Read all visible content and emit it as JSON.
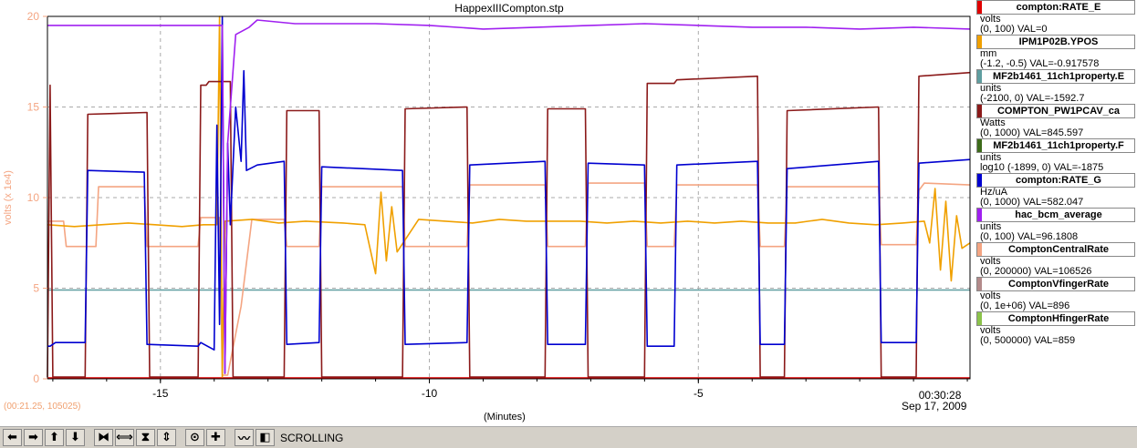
{
  "chart_data": {
    "type": "line",
    "title": "HappexIIICompton.stp",
    "xlabel": "(Minutes)",
    "ylabel": "volts (x 1e4)",
    "xlim": [
      -17.1,
      0.05
    ],
    "ylim": [
      0,
      20
    ],
    "x_ticks": [
      "-15",
      "-10",
      "-5"
    ],
    "x_tick_values": [
      -15,
      -10,
      -5
    ],
    "y_ticks": [
      "0",
      "5",
      "10",
      "15",
      "20"
    ],
    "y_tick_values": [
      0,
      5,
      10,
      15,
      20
    ],
    "grid": true,
    "legend_position": "right",
    "series": [
      {
        "name": "compton:RATE_E",
        "color": "#e00000",
        "unit": "volts",
        "range": "(0, 100)  VAL=0",
        "x": [
          -17.1,
          0.05
        ],
        "y": [
          0.05,
          0.05
        ]
      },
      {
        "name": "IPM1P02B.YPOS",
        "color": "#f0a000",
        "unit": "mm",
        "range": "(-1.2, -0.5) VAL=-0.917578",
        "x": [
          -17.1,
          -16.6,
          -16.1,
          -15.6,
          -15.1,
          -14.6,
          -14.2,
          -13.95,
          -13.9,
          -13.85,
          -13.8,
          -13.3,
          -12.8,
          -12.3,
          -11.6,
          -11.2,
          -11.0,
          -10.9,
          -10.8,
          -10.7,
          -10.6,
          -10.2,
          -9.7,
          -9.2,
          -8.7,
          -8.2,
          -7.7,
          -7.2,
          -6.7,
          -6.2,
          -5.7,
          -5.2,
          -4.7,
          -4.2,
          -3.7,
          -3.2,
          -2.7,
          -2.2,
          -1.7,
          -1.2,
          -0.8,
          -0.7,
          -0.6,
          -0.5,
          -0.4,
          -0.3,
          -0.2,
          -0.1,
          0.05
        ],
        "y": [
          8.5,
          8.4,
          8.5,
          8.6,
          8.5,
          8.4,
          8.5,
          8.5,
          20,
          0.1,
          8.7,
          8.8,
          8.6,
          8.7,
          8.6,
          8.5,
          5.8,
          10.3,
          6.5,
          9.5,
          7.0,
          8.8,
          8.7,
          8.6,
          8.8,
          8.7,
          8.7,
          8.7,
          8.6,
          8.7,
          8.6,
          8.7,
          8.6,
          8.7,
          8.6,
          8.6,
          8.8,
          8.6,
          8.5,
          8.6,
          8.7,
          7.5,
          10.5,
          6.0,
          9.8,
          5.4,
          9.0,
          7.2,
          7.5
        ]
      },
      {
        "name": "MF2b1461_11ch1property.E",
        "color": "#5f9ea0",
        "unit": "units",
        "range": "(-2100, 0) VAL=-1592.7",
        "x": [
          -17.1,
          0.05
        ],
        "y": [
          4.9,
          4.9
        ]
      },
      {
        "name": "COMPTON_PW1PCAV_ca",
        "color": "#8b1a1a",
        "unit": "Watts",
        "range": "(0, 1000) VAL=845.597",
        "x": [
          -17.1,
          -17.05,
          -17.0,
          -16.4,
          -16.35,
          -15.25,
          -15.2,
          -14.3,
          -14.25,
          -14.15,
          -14.1,
          -13.7,
          -13.65,
          -12.7,
          -12.65,
          -12.05,
          -12.0,
          -10.5,
          -10.45,
          -9.3,
          -9.25,
          -7.85,
          -7.8,
          -7.1,
          -7.05,
          -6.0,
          -5.95,
          -5.45,
          -5.4,
          -3.9,
          -3.85,
          -3.4,
          -3.35,
          -1.65,
          -1.6,
          -0.95,
          -0.9,
          0.05
        ],
        "y": [
          0.1,
          16.2,
          0.1,
          0.1,
          14.6,
          14.7,
          0.1,
          0.1,
          16.2,
          16.2,
          16.4,
          16.4,
          0.1,
          0.1,
          14.8,
          14.8,
          0.1,
          0.1,
          14.9,
          15.0,
          0.1,
          0.1,
          14.9,
          14.9,
          0.1,
          0.1,
          16.3,
          16.3,
          16.5,
          16.7,
          0.1,
          0.1,
          14.8,
          15.0,
          0.1,
          0.1,
          16.7,
          16.9
        ]
      },
      {
        "name": "MF2b1461_11ch1property.F",
        "color": "#3d6b1a",
        "unit": "units",
        "range": "log10 (-1899, 0)  VAL=-1875",
        "x": [],
        "y": []
      },
      {
        "name": "compton:RATE_G",
        "color": "#0000d0",
        "unit": "Hz/uA",
        "range": "(0, 1000) VAL=582.047",
        "x": [
          -17.1,
          -17.05,
          -16.95,
          -16.4,
          -16.35,
          -15.3,
          -15.25,
          -14.3,
          -14.25,
          -14.0,
          -13.95,
          -13.9,
          -13.85,
          -13.8,
          -13.75,
          -13.7,
          -13.6,
          -13.5,
          -13.45,
          -13.4,
          -13.2,
          -12.7,
          -12.65,
          -12.05,
          -12.0,
          -10.5,
          -10.45,
          -9.3,
          -9.25,
          -7.85,
          -7.8,
          -7.1,
          -7.05,
          -6.0,
          -5.95,
          -5.45,
          -5.4,
          -3.9,
          -3.85,
          -3.4,
          -3.35,
          -1.65,
          -1.6,
          -0.95,
          -0.9,
          0.05
        ],
        "y": [
          1.8,
          1.8,
          2.0,
          2.0,
          11.5,
          11.4,
          1.9,
          1.8,
          2.0,
          1.6,
          14.0,
          3.0,
          20,
          0.3,
          13.0,
          8.5,
          15.0,
          12.0,
          17.0,
          11.5,
          11.8,
          12.0,
          1.9,
          2.0,
          11.7,
          11.5,
          1.9,
          2.0,
          11.8,
          12.0,
          1.9,
          1.9,
          11.9,
          11.8,
          1.8,
          1.8,
          11.8,
          12.0,
          1.9,
          1.9,
          11.6,
          12.0,
          2.0,
          2.0,
          11.9,
          12.1
        ]
      },
      {
        "name": "hac_bcm_average",
        "color": "#a020f0",
        "unit": "units",
        "range": "(0, 100) VAL=96.1808",
        "x": [
          -17.1,
          -16.0,
          -15.0,
          -14.3,
          -13.85,
          -13.8,
          -13.75,
          -13.6,
          -13.35,
          -13.2,
          -12.5,
          -11.0,
          -10.0,
          -9.0,
          -8.0,
          -7.0,
          -6.0,
          -5.0,
          -4.0,
          -3.0,
          -2.0,
          -1.0,
          0.05
        ],
        "y": [
          19.5,
          19.5,
          19.5,
          19.5,
          19.5,
          0.3,
          13.0,
          19.0,
          19.4,
          19.8,
          19.6,
          19.6,
          19.5,
          19.3,
          19.4,
          19.5,
          19.6,
          19.5,
          19.4,
          19.4,
          19.3,
          19.4,
          19.3
        ]
      },
      {
        "name": "ComptonCentralRate",
        "color": "#f4a582",
        "unit": "volts",
        "range": "(0, 200000) VAL=106526",
        "x": [
          -17.1,
          -16.8,
          -16.75,
          -16.2,
          -16.15,
          -15.3,
          -15.25,
          -14.3,
          -14.25,
          -13.9,
          -13.85,
          -13.75,
          -13.5,
          -13.3,
          -13.2,
          -12.7,
          -12.65,
          -12.05,
          -12.0,
          -10.5,
          -10.45,
          -9.3,
          -9.25,
          -7.85,
          -7.8,
          -7.1,
          -7.05,
          -6.0,
          -5.95,
          -5.45,
          -5.4,
          -3.9,
          -3.85,
          -3.4,
          -3.35,
          -1.65,
          -1.6,
          -0.95,
          -0.9,
          -0.8,
          0.05
        ],
        "y": [
          8.7,
          8.7,
          7.3,
          7.3,
          10.6,
          10.6,
          7.3,
          7.3,
          8.9,
          8.9,
          0.2,
          0.2,
          4.0,
          8.8,
          8.8,
          8.8,
          7.3,
          7.3,
          10.6,
          10.6,
          7.3,
          7.3,
          10.7,
          10.7,
          7.3,
          7.3,
          10.8,
          10.8,
          7.3,
          7.3,
          10.7,
          10.7,
          7.3,
          7.3,
          10.6,
          10.6,
          7.4,
          7.4,
          10.4,
          10.8,
          10.7
        ]
      },
      {
        "name": "ComptonVfingerRate",
        "color": "#b38a8a",
        "unit": "volts",
        "range": "(0, 1e+06) VAL=896",
        "x": [],
        "y": []
      },
      {
        "name": "ComptonHfingerRate",
        "color": "#8bc34a",
        "unit": "volts",
        "range": "(0, 500000) VAL=859",
        "x": [],
        "y": []
      }
    ]
  },
  "time_label": "00:30:28",
  "date_label": "Sep 17, 2009",
  "readout": "(00:21.25, 105025)",
  "toolbar": {
    "status": "SCROLLING",
    "buttons": [
      {
        "name": "scroll-left-button",
        "glyph": "⬅"
      },
      {
        "name": "scroll-right-button",
        "glyph": "➡"
      },
      {
        "name": "scroll-up-button",
        "glyph": "⬆"
      },
      {
        "name": "scroll-down-button",
        "glyph": "⬇"
      },
      {
        "name": "zoom-in-x-button",
        "glyph": "⧓"
      },
      {
        "name": "zoom-out-x-button",
        "glyph": "⟺"
      },
      {
        "name": "zoom-in-y-button",
        "glyph": "⧗"
      },
      {
        "name": "zoom-out-y-button",
        "glyph": "⇕"
      },
      {
        "name": "autoscale-button",
        "glyph": "⊙"
      },
      {
        "name": "crosshair-button",
        "glyph": "✚"
      },
      {
        "name": "scroll-mode-button",
        "glyph": "〰"
      },
      {
        "name": "pause-button",
        "glyph": "◧"
      }
    ]
  }
}
